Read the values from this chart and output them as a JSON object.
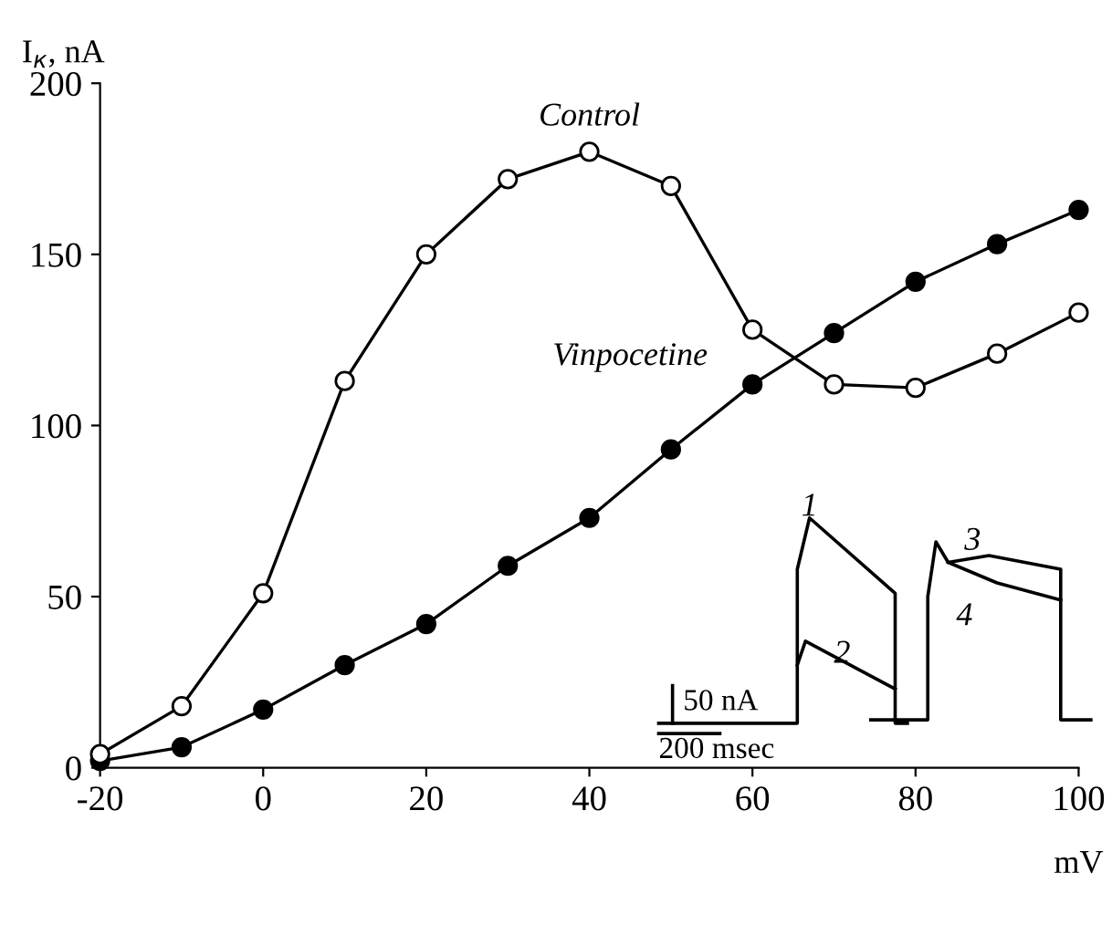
{
  "chart_data": {
    "type": "line",
    "ylabel": "I$_{к}$, nA",
    "xlabel": "mV",
    "x": [
      -20,
      -10,
      0,
      10,
      20,
      30,
      40,
      50,
      60,
      70,
      80,
      90,
      100
    ],
    "series": [
      {
        "name": "Control",
        "color": "#000000",
        "marker": "circle",
        "values": [
          4,
          18,
          51,
          113,
          150,
          172,
          180,
          170,
          128,
          112,
          111,
          121,
          133
        ]
      },
      {
        "name": "Vinpocetine",
        "color": "#000000",
        "marker": "circle",
        "values": [
          2,
          6,
          17,
          30,
          42,
          59,
          73,
          93,
          112,
          127,
          142,
          153,
          163
        ]
      }
    ],
    "xlim": [
      -20,
      100
    ],
    "xticks": [
      -20,
      0,
      20,
      40,
      60,
      80,
      100
    ],
    "ylim": [
      0,
      200
    ],
    "yticks": [
      0,
      50,
      100,
      150,
      200
    ],
    "grid": false,
    "legend": false,
    "annotations": [
      "1",
      "2",
      "3",
      "4",
      "50 nA",
      "200 msec"
    ]
  }
}
